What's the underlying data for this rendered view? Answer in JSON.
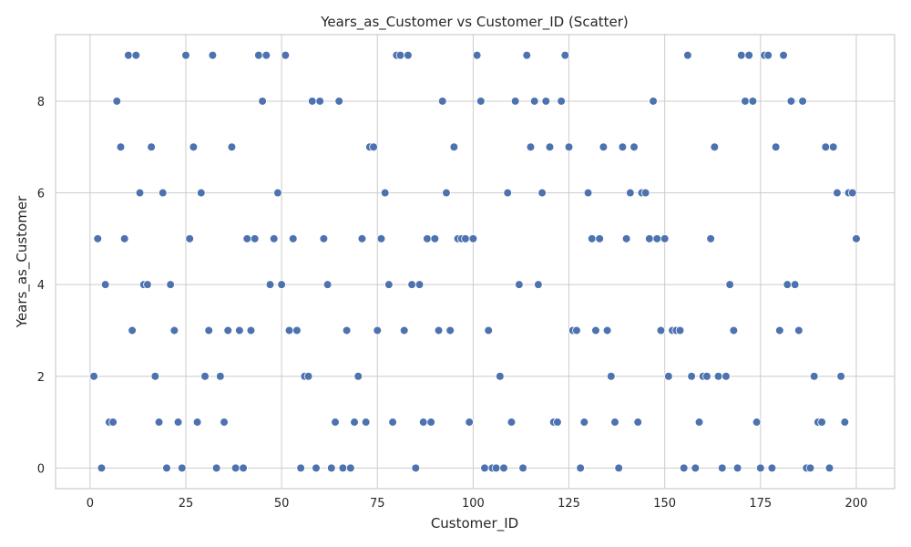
{
  "chart_data": {
    "type": "scatter",
    "title": "Years_as_Customer vs Customer_ID (Scatter)",
    "xlabel": "Customer_ID",
    "ylabel": "Years_as_Customer",
    "xlim": [
      -9,
      210
    ],
    "ylim": [
      -0.45,
      9.45
    ],
    "xticks": [
      0,
      25,
      50,
      75,
      100,
      125,
      150,
      175,
      200
    ],
    "yticks": [
      0,
      2,
      4,
      6,
      8
    ],
    "grid": true,
    "point_color": "#4c72b0",
    "x": [
      1,
      2,
      3,
      4,
      5,
      6,
      7,
      8,
      9,
      10,
      11,
      12,
      13,
      14,
      15,
      16,
      17,
      18,
      19,
      20,
      21,
      22,
      23,
      24,
      25,
      26,
      27,
      28,
      29,
      30,
      31,
      32,
      33,
      34,
      35,
      36,
      37,
      38,
      39,
      40,
      41,
      42,
      43,
      44,
      45,
      46,
      47,
      48,
      49,
      50,
      51,
      52,
      53,
      54,
      55,
      56,
      57,
      58,
      59,
      60,
      61,
      62,
      63,
      64,
      65,
      66,
      67,
      68,
      69,
      70,
      71,
      72,
      73,
      74,
      75,
      76,
      77,
      78,
      79,
      80,
      81,
      82,
      83,
      84,
      85,
      86,
      87,
      88,
      89,
      90,
      91,
      92,
      93,
      94,
      95,
      96,
      97,
      98,
      99,
      100,
      101,
      102,
      103,
      104,
      105,
      106,
      107,
      108,
      109,
      110,
      111,
      112,
      113,
      114,
      115,
      116,
      117,
      118,
      119,
      120,
      121,
      122,
      123,
      124,
      125,
      126,
      127,
      128,
      129,
      130,
      131,
      132,
      133,
      134,
      135,
      136,
      137,
      138,
      139,
      140,
      141,
      142,
      143,
      144,
      145,
      146,
      147,
      148,
      149,
      150,
      151,
      152,
      153,
      154,
      155,
      156,
      157,
      158,
      159,
      160,
      161,
      162,
      163,
      164,
      165,
      166,
      167,
      168,
      169,
      170,
      171,
      172,
      173,
      174,
      175,
      176,
      177,
      178,
      179,
      180,
      181,
      182,
      183,
      184,
      185,
      186,
      187,
      188,
      189,
      190,
      191,
      192,
      193,
      194,
      195,
      196,
      197,
      198,
      199,
      200
    ],
    "y": [
      2,
      5,
      0,
      4,
      1,
      1,
      8,
      7,
      5,
      9,
      3,
      9,
      6,
      4,
      4,
      7,
      2,
      1,
      6,
      0,
      4,
      3,
      1,
      0,
      9,
      5,
      7,
      1,
      6,
      2,
      3,
      9,
      0,
      2,
      1,
      3,
      7,
      0,
      3,
      0,
      5,
      3,
      5,
      9,
      8,
      9,
      4,
      5,
      6,
      4,
      9,
      3,
      5,
      3,
      0,
      2,
      2,
      8,
      0,
      8,
      5,
      4,
      0,
      1,
      8,
      0,
      3,
      0,
      1,
      2,
      5,
      1,
      7,
      7,
      3,
      5,
      6,
      4,
      1,
      9,
      9,
      3,
      9,
      4,
      0,
      4,
      1,
      5,
      1,
      5,
      3,
      8,
      6,
      3,
      7,
      5,
      5,
      5,
      1,
      5,
      9,
      8,
      0,
      3,
      0,
      0,
      2,
      0,
      6,
      1,
      8,
      4,
      0,
      9,
      7,
      8,
      4,
      6,
      8,
      7,
      1,
      1,
      8,
      9,
      7,
      3,
      3,
      0,
      1,
      6,
      5,
      3,
      5,
      7,
      3,
      2,
      1,
      0,
      7,
      5,
      6,
      7,
      1,
      6,
      6,
      5,
      8,
      5,
      3,
      5,
      2,
      3,
      3,
      3,
      0,
      9,
      2,
      0,
      1,
      2,
      2,
      5,
      7,
      2,
      0,
      2,
      4,
      3,
      0,
      9,
      8,
      9,
      8,
      1,
      0,
      9,
      9,
      0,
      7,
      3,
      9,
      4,
      8,
      4,
      3,
      8,
      0,
      0,
      2,
      1,
      1,
      7,
      0,
      7,
      6,
      2,
      1,
      6,
      6,
      5
    ]
  }
}
